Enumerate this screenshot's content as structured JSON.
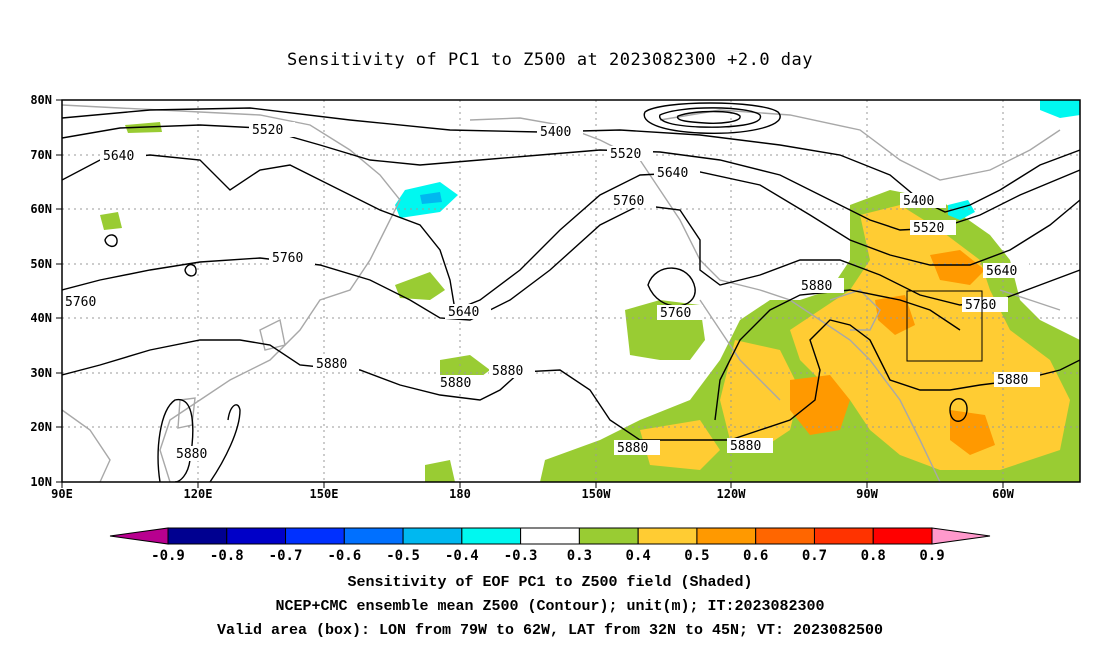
{
  "title": "Sensitivity of PC1 to Z500 at 2023082300 +2.0 day",
  "map": {
    "lon_labels": [
      "90E",
      "120E",
      "150E",
      "180",
      "150W",
      "120W",
      "90W",
      "60W"
    ],
    "lat_labels": [
      "80N",
      "70N",
      "60N",
      "50N",
      "40N",
      "30N",
      "20N",
      "10N"
    ],
    "lon_range": [
      90,
      315
    ],
    "lat_range": [
      10,
      80
    ],
    "contour_labels": [
      "5400",
      "5520",
      "5640",
      "5760",
      "5880"
    ],
    "valid_box": {
      "lon_west": "79W",
      "lon_east": "62W",
      "lat_south": "32N",
      "lat_north": "45N"
    }
  },
  "colorbar": {
    "ticks": [
      "-0.9",
      "-0.8",
      "-0.7",
      "-0.6",
      "-0.5",
      "-0.4",
      "-0.3",
      "0.3",
      "0.4",
      "0.5",
      "0.6",
      "0.7",
      "0.8",
      "0.9"
    ],
    "colors": [
      "#b8008f",
      "#000090",
      "#0000c8",
      "#0030ff",
      "#0070ff",
      "#00b8f0",
      "#00f8f0",
      "#ffffff",
      "#99cc33",
      "#ffcc33",
      "#ff9900",
      "#ff6600",
      "#ff3300",
      "#ff0000",
      "#ff99cc"
    ]
  },
  "captions": [
    "Sensitivity of EOF PC1 to Z500 field (Shaded)",
    "NCEP+CMC ensemble mean Z500 (Contour); unit(m); IT:2023082300",
    "Valid area (box): LON from 79W to 62W, LAT from 32N to 45N; VT: 2023082500"
  ]
}
